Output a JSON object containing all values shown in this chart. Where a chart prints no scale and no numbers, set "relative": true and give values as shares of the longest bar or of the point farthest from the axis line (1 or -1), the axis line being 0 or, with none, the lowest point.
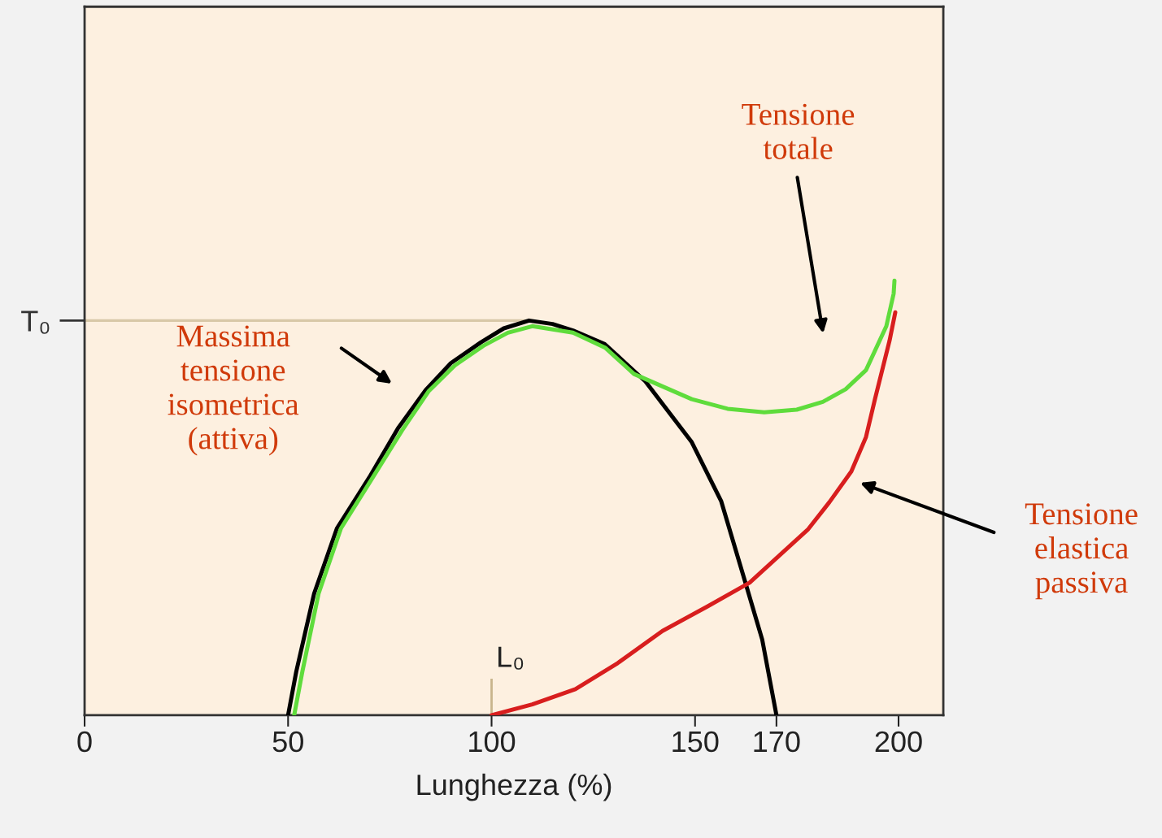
{
  "chart_data": {
    "type": "line",
    "relative": true,
    "xlabel": "Lunghezza (%)",
    "xlim": [
      0,
      211
    ],
    "xticks": [
      0,
      50,
      100,
      150,
      170,
      200
    ],
    "series": [
      {
        "color": "#000000",
        "x": [
          50,
          52,
          56.4,
          62,
          70.2,
          77,
          83.8,
          90,
          97.4,
          103,
          109.2,
          115,
          120,
          127.8,
          137.8,
          149.2,
          156.4,
          162.5,
          166.5,
          170
        ],
        "values": [
          0,
          0.1,
          0.28,
          0.43,
          0.551,
          0.66,
          0.748,
          0.81,
          0.858,
          0.89,
          0.908,
          0.9,
          0.885,
          0.854,
          0.768,
          0.628,
          0.493,
          0.301,
          0.174,
          0
        ]
      },
      {
        "color": "#5fdc3c",
        "x": [
          51.5,
          53.5,
          57.5,
          63,
          71,
          78,
          84.5,
          91,
          98,
          104,
          110,
          120,
          128,
          135,
          149.2,
          158,
          167,
          175,
          181.4,
          187,
          192,
          197,
          198.8,
          199
        ],
        "values": [
          0,
          0.1,
          0.28,
          0.43,
          0.55,
          0.655,
          0.745,
          0.805,
          0.85,
          0.88,
          0.895,
          0.88,
          0.845,
          0.785,
          0.727,
          0.705,
          0.697,
          0.703,
          0.721,
          0.75,
          0.794,
          0.895,
          0.97,
          1.0
        ]
      },
      {
        "color": "#d81e1e",
        "x": [
          100,
          110,
          120.6,
          131,
          142,
          153,
          163.4,
          171,
          177.8,
          183,
          188.4,
          192,
          194.2,
          197.8,
          199.2
        ],
        "values": [
          0,
          0.025,
          0.06,
          0.12,
          0.194,
          0.25,
          0.305,
          0.37,
          0.428,
          0.49,
          0.561,
          0.64,
          0.727,
          0.862,
          0.927
        ]
      }
    ],
    "ref_lines": [
      {
        "axis": "y",
        "value": 0.908,
        "label": "T₀",
        "color": "#d8c8a8"
      },
      {
        "axis": "x",
        "value": 100,
        "label": "L₀",
        "color": "#c8b48c"
      }
    ],
    "annotations": [
      "Massima\ntensione\nisometrica\n(attiva)",
      "Tensione\ntotale",
      "Tensione\nelastica\npassiva"
    ],
    "grid": false,
    "legend": false,
    "line_style": "solid",
    "marker": "none"
  }
}
